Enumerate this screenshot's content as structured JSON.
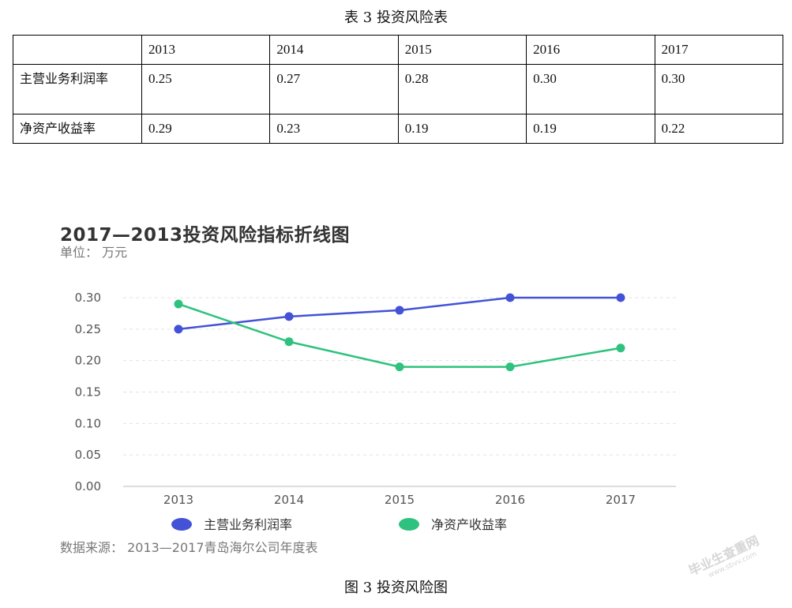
{
  "table_caption": "表 3  投资风险表",
  "table": {
    "headers": [
      "",
      "2013",
      "2014",
      "2015",
      "2016",
      "2017"
    ],
    "rows": [
      {
        "label": "主营业务利润率",
        "values": [
          "0.25",
          "0.27",
          "0.28",
          "0.30",
          "0.30"
        ]
      },
      {
        "label": "净资产收益率",
        "values": [
          "0.29",
          "0.23",
          "0.19",
          "0.19",
          "0.22"
        ]
      }
    ]
  },
  "chart_data": {
    "type": "line",
    "title": "2017—2013投资风险指标折线图",
    "subtitle": "单位： 万元",
    "categories": [
      "2013",
      "2014",
      "2015",
      "2016",
      "2017"
    ],
    "series": [
      {
        "name": "主营业务利润率",
        "color": "#4352d6",
        "values": [
          0.25,
          0.27,
          0.28,
          0.3,
          0.3
        ]
      },
      {
        "name": "净资产收益率",
        "color": "#2ec27e",
        "values": [
          0.29,
          0.23,
          0.19,
          0.19,
          0.22
        ]
      }
    ],
    "ylim": [
      0,
      0.3
    ],
    "yticks": [
      "0.00",
      "0.05",
      "0.10",
      "0.15",
      "0.20",
      "0.25",
      "0.30"
    ],
    "grid": true,
    "legend": "bottom",
    "source": "数据来源： 2013—2017青岛海尔公司年度表"
  },
  "figure_caption": "图 3  投资风险图",
  "watermark": {
    "main": "毕业生查重网",
    "sub": "www.sbvv.com"
  }
}
